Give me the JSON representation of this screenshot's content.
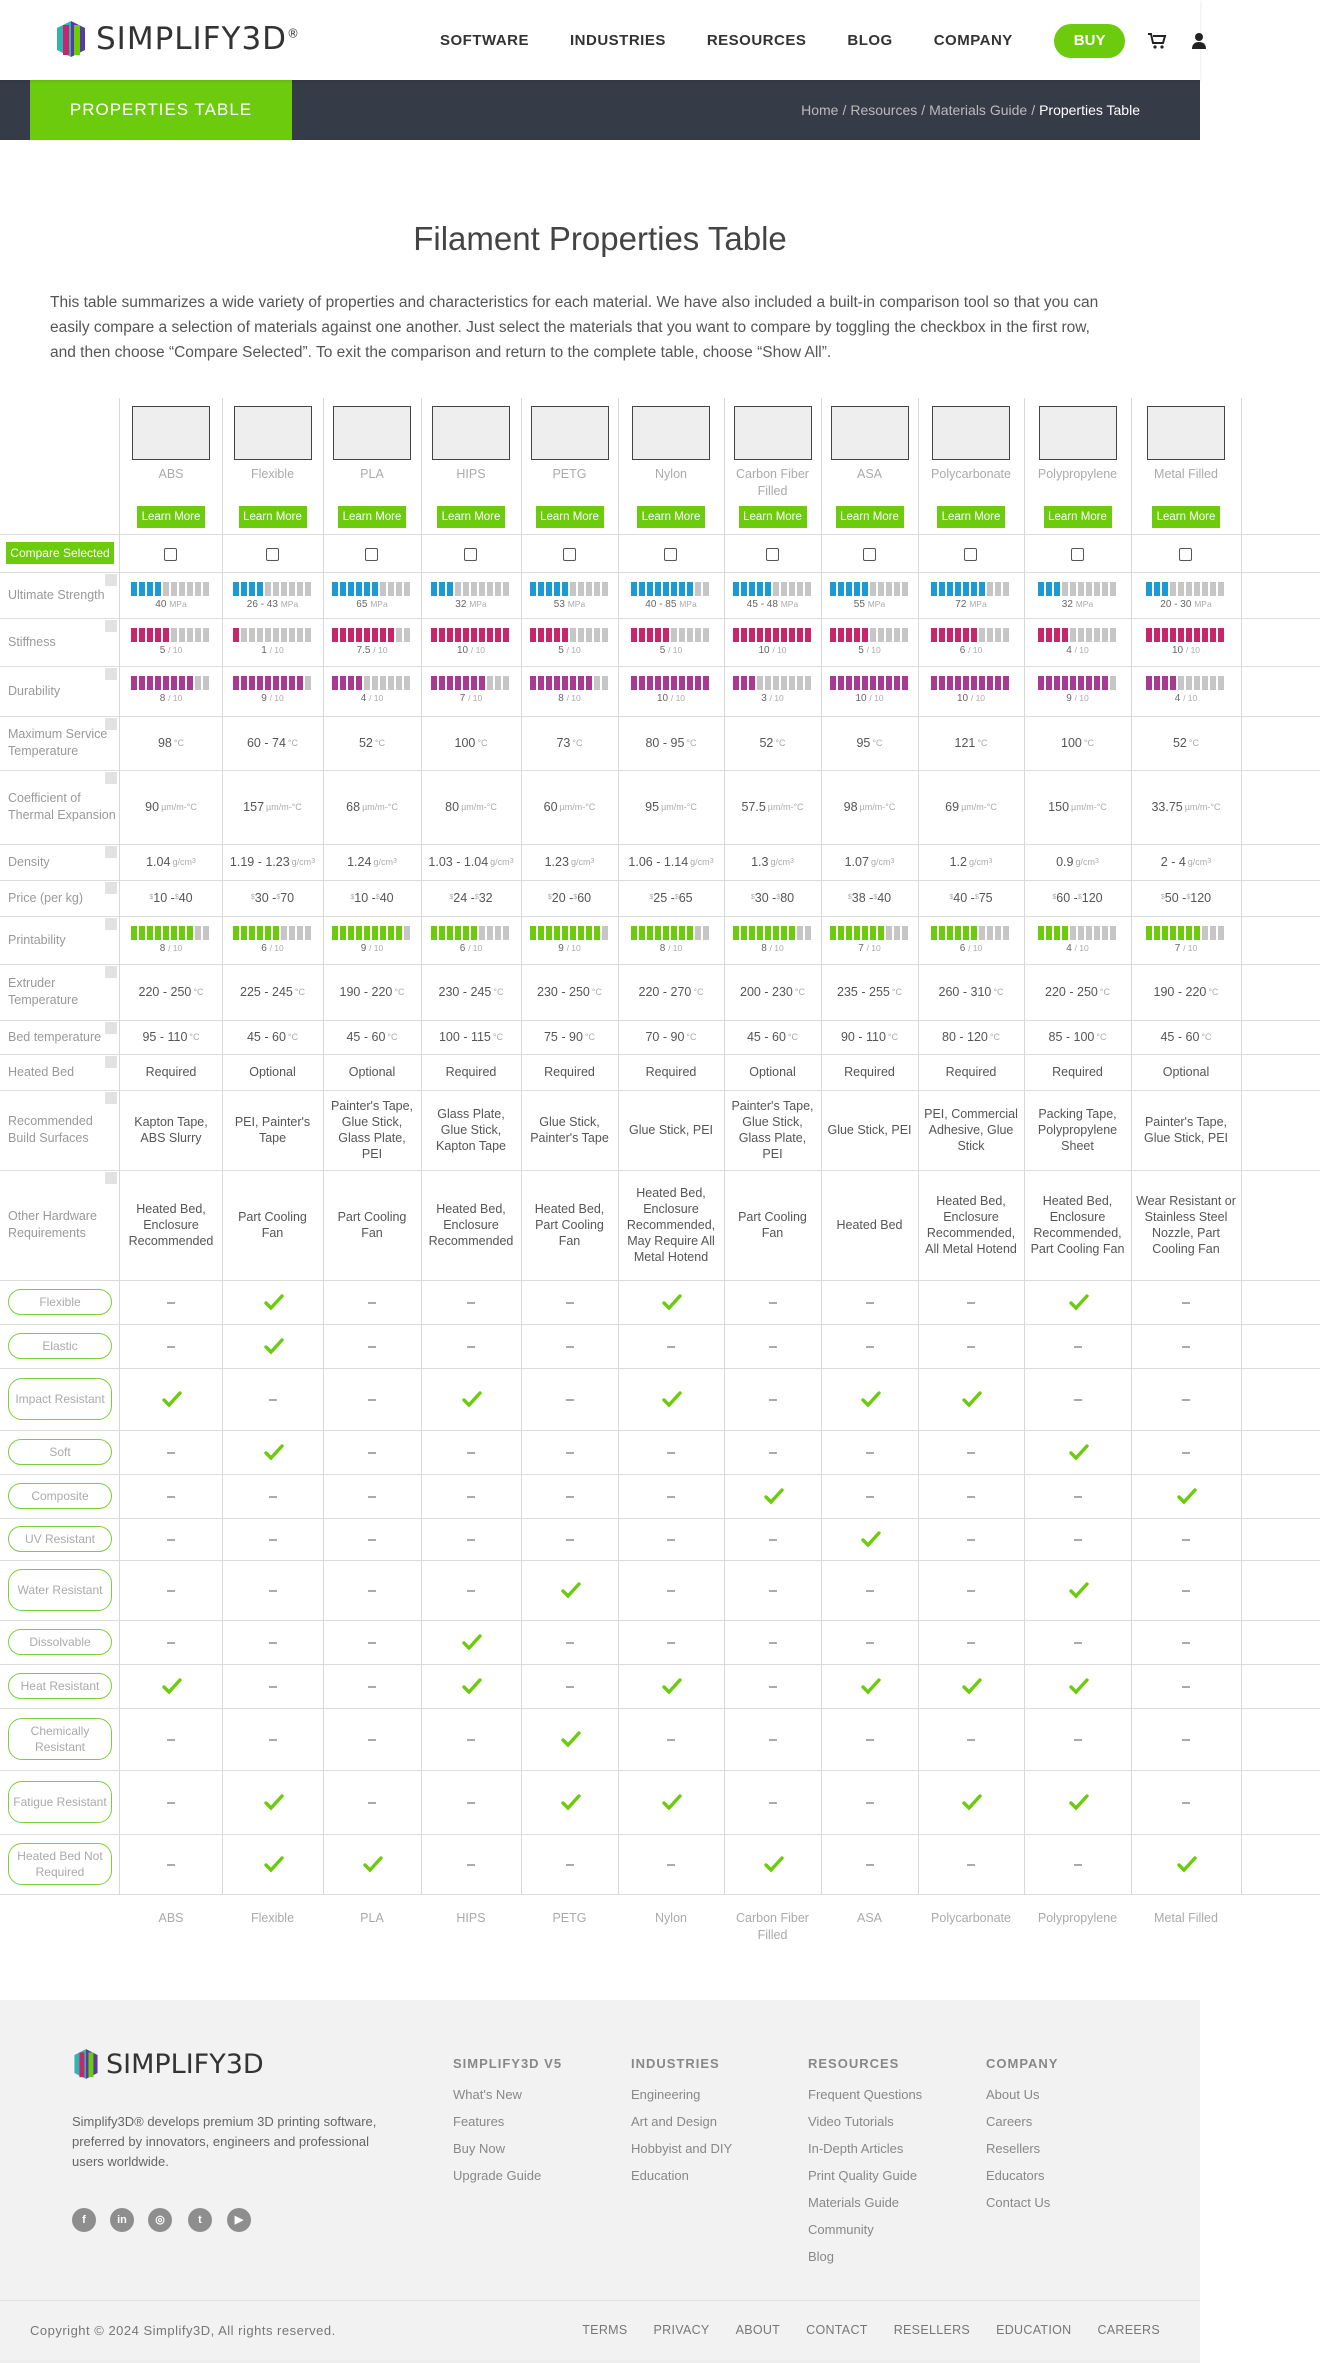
{
  "header": {
    "logo_text": "SIMPLIFY3D",
    "logo_reg": "®",
    "nav": [
      "SOFTWARE",
      "INDUSTRIES",
      "RESOURCES",
      "BLOG",
      "COMPANY"
    ],
    "buy_label": "BUY",
    "cart_icon": "cart-icon",
    "user_icon": "user-icon"
  },
  "subheader": {
    "title": "PROPERTIES TABLE",
    "breadcrumb": [
      "Home",
      "Resources",
      "Materials Guide"
    ],
    "breadcrumb_current": "Properties Table"
  },
  "page": {
    "title": "Filament Properties Table",
    "intro": "This table summarizes a wide variety of properties and characteristics for each material. We have also included a built-in comparison tool so that you can easily compare a selection of materials against one another. Just select the materials that you want to compare by toggling the checkbox in the first row, and then choose “Compare Selected”. To exit the comparison and return to the complete table, choose “Show All”."
  },
  "table": {
    "compare_label": "Compare Selected",
    "learn_more_label": "Learn More",
    "row_labels": {
      "strength": "Ultimate Strength",
      "stiffness": "Stiffness",
      "durability": "Durability",
      "max_temp": "Maximum Service Temperature",
      "cte": "Coefficient of Thermal Expansion",
      "density": "Density",
      "price": "Price (per kg)",
      "printability": "Printability",
      "extruder": "Extruder Temperature",
      "bed": "Bed temperature",
      "heated_bed": "Heated Bed",
      "surfaces": "Recommended Build Surfaces",
      "hardware": "Other Hardware Requirements"
    },
    "units": {
      "strength": "MPa",
      "rating": "/ 10",
      "temp": "°C",
      "cte": "µm/m-°C",
      "density": "g/cm",
      "density_exp": "3",
      "currency": "$"
    },
    "feature_labels": [
      "Flexible",
      "Elastic",
      "Impact Resistant",
      "Soft",
      "Composite",
      "UV Resistant",
      "Water Resistant",
      "Dissolvable",
      "Heat Resistant",
      "Chemically Resistant",
      "Fatigue Resistant",
      "Heated Bed Not Required"
    ],
    "bar_colors": {
      "strength": "#1b9ad6",
      "stiffness": "#c8266a",
      "durability": "#a93a93",
      "printability": "#6ccb0c",
      "empty": "#c6c6c6"
    },
    "materials": [
      {
        "name": "ABS",
        "strength": "40",
        "strength_level": 4,
        "stiffness": 5,
        "durability": 8,
        "max_temp": "98",
        "cte": "90",
        "density": "1.04",
        "price_lo": "10",
        "price_hi": "40",
        "printability": 8,
        "extruder": "220 - 250",
        "bed": "95 - 110",
        "heated_bed": "Required",
        "surfaces": "Kapton Tape, ABS Slurry",
        "hardware": "Heated Bed, Enclosure Recommended",
        "features": [
          0,
          0,
          1,
          0,
          0,
          0,
          0,
          0,
          1,
          0,
          0,
          0
        ]
      },
      {
        "name": "Flexible",
        "strength": "26 - 43",
        "strength_level": 4,
        "stiffness": 1,
        "durability": 9,
        "max_temp": "60 - 74",
        "cte": "157",
        "density": "1.19 - 1.23",
        "price_lo": "30",
        "price_hi": "70",
        "printability": 6,
        "extruder": "225 - 245",
        "bed": "45 - 60",
        "heated_bed": "Optional",
        "surfaces": "PEI, Painter's Tape",
        "hardware": "Part Cooling Fan",
        "features": [
          1,
          1,
          0,
          1,
          0,
          0,
          0,
          0,
          0,
          0,
          1,
          1
        ]
      },
      {
        "name": "PLA",
        "strength": "65",
        "strength_level": 6,
        "stiffness": 7.5,
        "durability": 4,
        "max_temp": "52",
        "cte": "68",
        "density": "1.24",
        "price_lo": "10",
        "price_hi": "40",
        "printability": 9,
        "extruder": "190 - 220",
        "bed": "45 - 60",
        "heated_bed": "Optional",
        "surfaces": "Painter's Tape, Glue Stick, Glass Plate, PEI",
        "hardware": "Part Cooling Fan",
        "features": [
          0,
          0,
          0,
          0,
          0,
          0,
          0,
          0,
          0,
          0,
          0,
          1
        ]
      },
      {
        "name": "HIPS",
        "strength": "32",
        "strength_level": 3,
        "stiffness": 10,
        "durability": 7,
        "max_temp": "100",
        "cte": "80",
        "density": "1.03 - 1.04",
        "price_lo": "24",
        "price_hi": "32",
        "printability": 6,
        "extruder": "230 - 245",
        "bed": "100 - 115",
        "heated_bed": "Required",
        "surfaces": "Glass Plate, Glue Stick, Kapton Tape",
        "hardware": "Heated Bed, Enclosure Recommended",
        "features": [
          0,
          0,
          1,
          0,
          0,
          0,
          0,
          1,
          1,
          0,
          0,
          0
        ]
      },
      {
        "name": "PETG",
        "strength": "53",
        "strength_level": 5,
        "stiffness": 5,
        "durability": 8,
        "max_temp": "73",
        "cte": "60",
        "density": "1.23",
        "price_lo": "20",
        "price_hi": "60",
        "printability": 9,
        "extruder": "230 - 250",
        "bed": "75 - 90",
        "heated_bed": "Required",
        "surfaces": "Glue Stick, Painter's Tape",
        "hardware": "Heated Bed, Part Cooling Fan",
        "features": [
          0,
          0,
          0,
          0,
          0,
          0,
          1,
          0,
          0,
          1,
          1,
          0
        ]
      },
      {
        "name": "Nylon",
        "strength": "40 - 85",
        "strength_level": 8,
        "stiffness": 5,
        "durability": 10,
        "max_temp": "80 - 95",
        "cte": "95",
        "density": "1.06 - 1.14",
        "price_lo": "25",
        "price_hi": "65",
        "printability": 8,
        "extruder": "220 - 270",
        "bed": "70 - 90",
        "heated_bed": "Required",
        "surfaces": "Glue Stick, PEI",
        "hardware": "Heated Bed, Enclosure Recommended, May Require All Metal Hotend",
        "features": [
          1,
          0,
          1,
          0,
          0,
          0,
          0,
          0,
          1,
          0,
          1,
          0
        ]
      },
      {
        "name": "Carbon Fiber Filled",
        "strength": "45 - 48",
        "strength_level": 5,
        "stiffness": 10,
        "durability": 3,
        "max_temp": "52",
        "cte": "57.5",
        "density": "1.3",
        "price_lo": "30",
        "price_hi": "80",
        "printability": 8,
        "extruder": "200 - 230",
        "bed": "45 - 60",
        "heated_bed": "Optional",
        "surfaces": "Painter's Tape, Glue Stick, Glass Plate, PEI",
        "hardware": "Part Cooling Fan",
        "features": [
          0,
          0,
          0,
          0,
          1,
          0,
          0,
          0,
          0,
          0,
          0,
          1
        ]
      },
      {
        "name": "ASA",
        "strength": "55",
        "strength_level": 5,
        "stiffness": 5,
        "durability": 10,
        "max_temp": "95",
        "cte": "98",
        "density": "1.07",
        "price_lo": "38",
        "price_hi": "40",
        "printability": 7,
        "extruder": "235 - 255",
        "bed": "90 - 110",
        "heated_bed": "Required",
        "surfaces": "Glue Stick, PEI",
        "hardware": "Heated Bed",
        "features": [
          0,
          0,
          1,
          0,
          0,
          1,
          0,
          0,
          1,
          0,
          0,
          0
        ]
      },
      {
        "name": "Polycarbonate",
        "strength": "72",
        "strength_level": 7,
        "stiffness": 6,
        "durability": 10,
        "max_temp": "121",
        "cte": "69",
        "density": "1.2",
        "price_lo": "40",
        "price_hi": "75",
        "printability": 6,
        "extruder": "260 - 310",
        "bed": "80 - 120",
        "heated_bed": "Required",
        "surfaces": "PEI, Commercial Adhesive, Glue Stick",
        "hardware": "Heated Bed, Enclosure Recommended, All Metal Hotend",
        "features": [
          0,
          0,
          1,
          0,
          0,
          0,
          0,
          0,
          1,
          0,
          1,
          0
        ]
      },
      {
        "name": "Polypropylene",
        "strength": "32",
        "strength_level": 3,
        "stiffness": 4,
        "durability": 9,
        "max_temp": "100",
        "cte": "150",
        "density": "0.9",
        "price_lo": "60",
        "price_hi": "120",
        "printability": 4,
        "extruder": "220 - 250",
        "bed": "85 - 100",
        "heated_bed": "Required",
        "surfaces": "Packing Tape, Polypropylene Sheet",
        "hardware": "Heated Bed, Enclosure Recommended, Part Cooling Fan",
        "features": [
          1,
          0,
          0,
          1,
          0,
          0,
          1,
          0,
          1,
          0,
          1,
          0
        ]
      },
      {
        "name": "Metal Filled",
        "strength": "20 - 30",
        "strength_level": 3,
        "stiffness": 10,
        "durability": 4,
        "max_temp": "52",
        "cte": "33.75",
        "density": "2 - 4",
        "price_lo": "50",
        "price_hi": "120",
        "printability": 7,
        "extruder": "190 - 220",
        "bed": "45 - 60",
        "heated_bed": "Optional",
        "surfaces": "Painter's Tape, Glue Stick, PEI",
        "hardware": "Wear Resistant or Stainless Steel Nozzle, Part Cooling Fan",
        "features": [
          0,
          0,
          0,
          0,
          1,
          0,
          0,
          0,
          0,
          0,
          0,
          1
        ]
      }
    ]
  },
  "footer": {
    "logo_text": "SIMPLIFY3D",
    "description": "Simplify3D® develops premium 3D printing software, preferred by innovators, engineers and professional users worldwide.",
    "social": [
      "facebook-icon",
      "linkedin-icon",
      "instagram-icon",
      "twitter-icon",
      "youtube-icon"
    ],
    "columns": [
      {
        "title": "SIMPLIFY3D V5",
        "links": [
          "What's New",
          "Features",
          "Buy Now",
          "Upgrade Guide"
        ]
      },
      {
        "title": "INDUSTRIES",
        "links": [
          "Engineering",
          "Art and Design",
          "Hobbyist and DIY",
          "Education"
        ]
      },
      {
        "title": "RESOURCES",
        "links": [
          "Frequent Questions",
          "Video Tutorials",
          "In-Depth Articles",
          "Print Quality Guide",
          "Materials Guide",
          "Community",
          "Blog"
        ]
      },
      {
        "title": "COMPANY",
        "links": [
          "About Us",
          "Careers",
          "Resellers",
          "Educators",
          "Contact Us"
        ]
      }
    ],
    "copyright": "Copyright © 2024 Simplify3D, All rights reserved.",
    "bottom_links": [
      "TERMS",
      "PRIVACY",
      "ABOUT",
      "CONTACT",
      "RESELLERS",
      "EDUCATION",
      "CAREERS"
    ]
  }
}
